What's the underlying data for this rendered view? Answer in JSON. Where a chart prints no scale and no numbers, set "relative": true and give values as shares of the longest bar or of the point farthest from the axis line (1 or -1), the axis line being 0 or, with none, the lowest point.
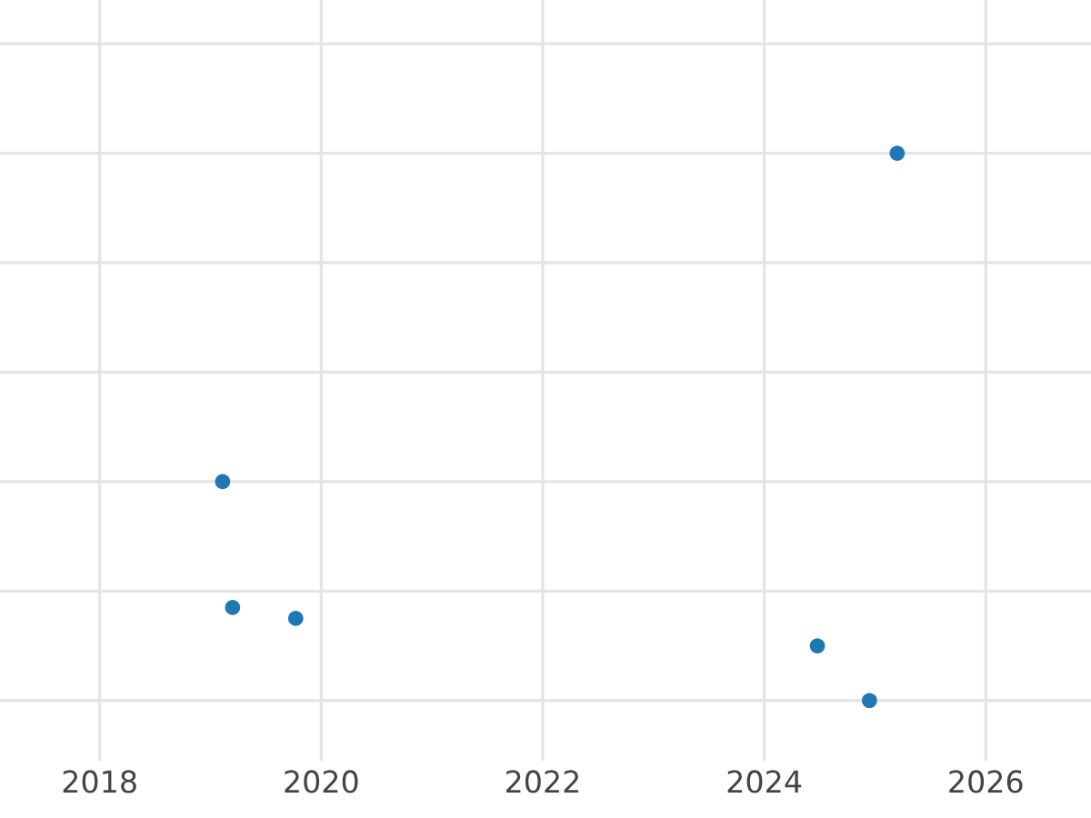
{
  "chart_data": {
    "type": "scatter",
    "relative": true,
    "x": [
      2019.11,
      2019.2,
      2019.77,
      2024.48,
      2024.95,
      2025.2
    ],
    "values": [
      0.4,
      0.17,
      0.15,
      0.1,
      0,
      1
    ],
    "color": "#1f77b4",
    "marker": "circle",
    "xlim": [
      2017.1,
      2026.95
    ],
    "xticks": [
      2018,
      2020,
      2022,
      2024,
      2026
    ],
    "grid": true,
    "tick_labels": "x"
  }
}
